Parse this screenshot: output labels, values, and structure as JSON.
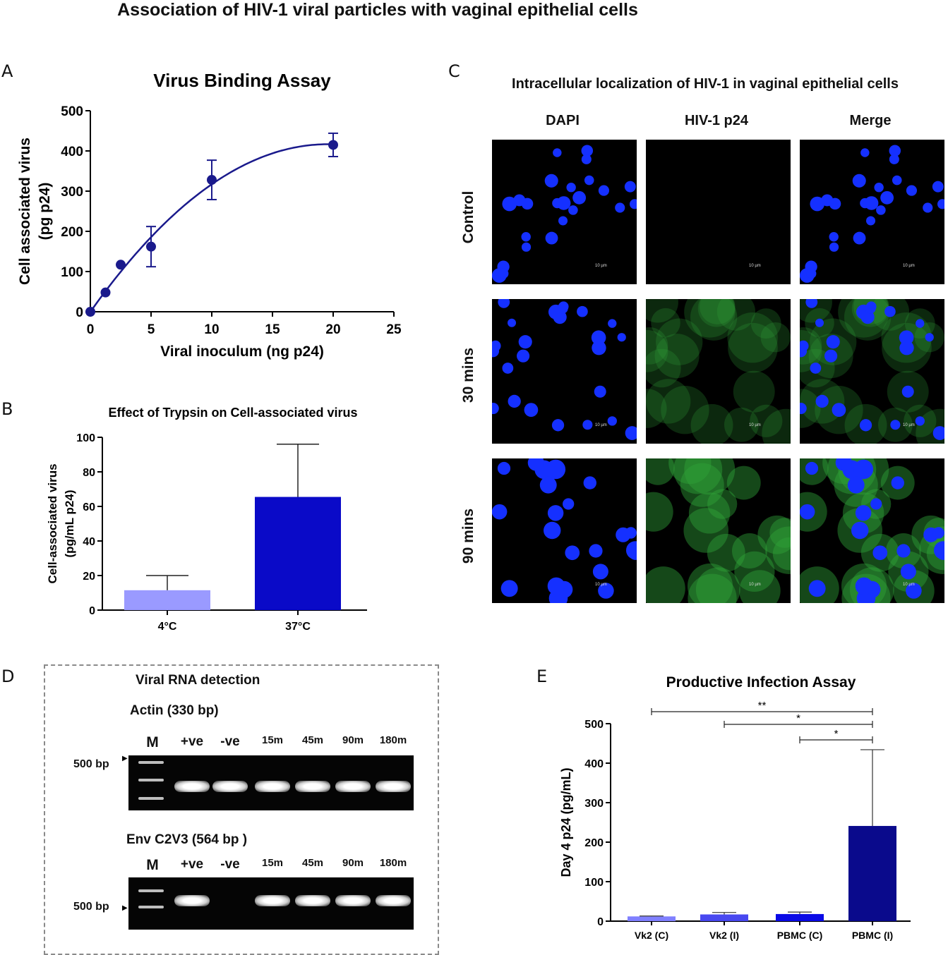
{
  "figure_title": "Association of HIV-1 viral particles with vaginal epithelial cells",
  "panels": {
    "A": {
      "letter": "A"
    },
    "B": {
      "letter": "B"
    },
    "C": {
      "letter": "C",
      "title": "Intracellular localization of HIV-1 in vaginal epithelial cells",
      "columns": [
        "DAPI",
        "HIV-1 p24",
        "Merge"
      ],
      "rows": [
        "Control",
        "30 mins",
        "90 mins"
      ],
      "scale_label": "10 µm",
      "colors": {
        "nuclei": "#1530ff",
        "p24": "#2fa33a",
        "background": "#000000"
      }
    },
    "D": {
      "letter": "D",
      "title": "Viral RNA detection",
      "gels": [
        {
          "label": "Actin (330 bp)",
          "marker_label": "500 bp"
        },
        {
          "label": "Env C2V3 (564 bp )",
          "marker_label": "500 bp"
        }
      ],
      "lanes": [
        "M",
        "+ve",
        "-ve",
        "15m",
        "45m",
        "90m",
        "180m"
      ],
      "actin_band_presence": [
        1,
        1,
        1,
        1,
        1,
        1
      ],
      "env_band_presence": [
        1,
        0,
        1,
        1,
        1,
        1
      ]
    },
    "E": {
      "letter": "E"
    }
  },
  "chart_data": [
    {
      "id": "A",
      "type": "scatter",
      "title": "Virus Binding Assay",
      "xlabel": "Viral inoculum (ng p24)",
      "ylabel_lines": [
        "Cell associated virus",
        "(pg p24)"
      ],
      "xlim": [
        0,
        25
      ],
      "ylim": [
        0,
        500
      ],
      "xticks": [
        0,
        5,
        10,
        15,
        20,
        25
      ],
      "yticks": [
        0,
        100,
        200,
        300,
        400,
        500
      ],
      "points": [
        {
          "x": 0,
          "y": 0
        },
        {
          "x": 1.25,
          "y": 48
        },
        {
          "x": 2.5,
          "y": 117
        },
        {
          "x": 5,
          "y": 162,
          "err": 50
        },
        {
          "x": 10,
          "y": 328,
          "err": 49
        },
        {
          "x": 20,
          "y": 415,
          "err": 29
        }
      ],
      "fit_curve": "quadratic",
      "color": "#1a1a8c"
    },
    {
      "id": "B",
      "type": "bar",
      "title": "Effect of Trypsin on Cell-associated virus",
      "ylabel_lines": [
        "Cell-associated virus",
        "(pg/mL p24)"
      ],
      "categories": [
        "4°C",
        "37°C"
      ],
      "values": [
        11.5,
        65.5
      ],
      "errors": [
        8.5,
        30.5
      ],
      "colors": [
        "#9a9aff",
        "#0a0ac8"
      ],
      "ylim": [
        0,
        100
      ],
      "yticks": [
        0,
        20,
        40,
        60,
        80,
        100
      ]
    },
    {
      "id": "E",
      "type": "bar",
      "title": "Productive Infection Assay",
      "ylabel": "Day 4 p24 (pg/mL)",
      "categories": [
        "Vk2 (C)",
        "Vk2 (I)",
        "PBMC (C)",
        "PBMC (I)"
      ],
      "values": [
        12,
        17,
        18,
        241
      ],
      "errors": [
        1,
        5,
        5,
        193
      ],
      "colors": [
        "#8080ff",
        "#4848f0",
        "#0a0ae6",
        "#0a0a8c"
      ],
      "ylim": [
        0,
        500
      ],
      "yticks": [
        0,
        100,
        200,
        300,
        400,
        500
      ],
      "significance": [
        {
          "from": 0,
          "to": 3,
          "label": "**"
        },
        {
          "from": 1,
          "to": 3,
          "label": "*"
        },
        {
          "from": 2,
          "to": 3,
          "label": "*"
        }
      ]
    }
  ]
}
